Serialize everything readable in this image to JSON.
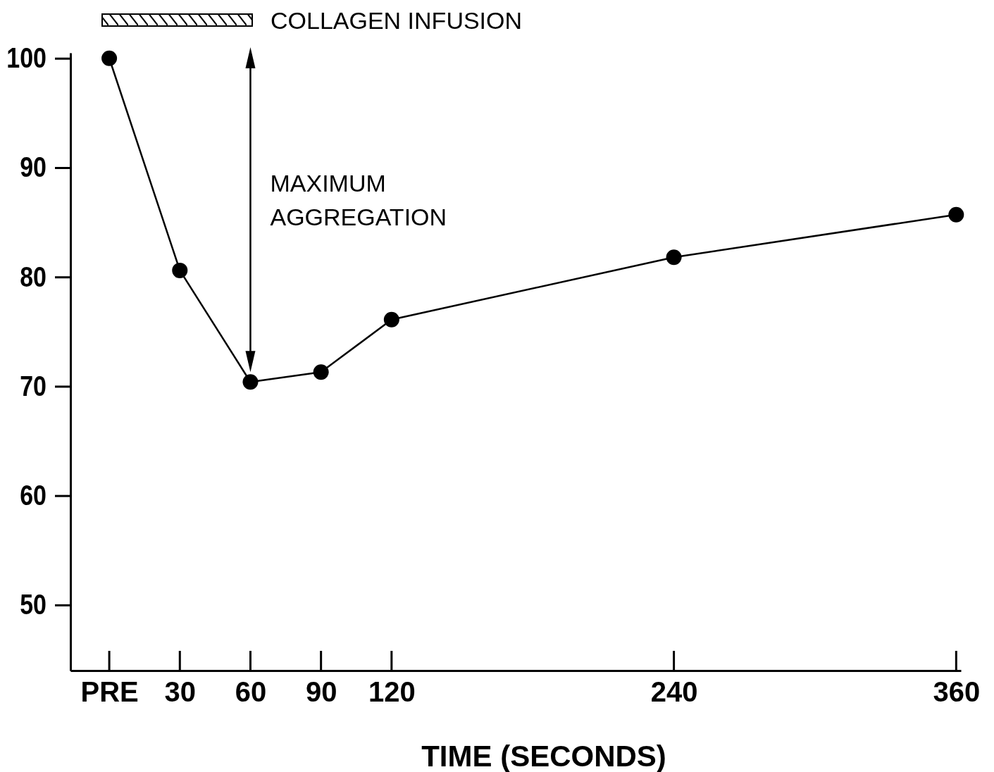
{
  "chart_data": {
    "type": "line",
    "xlabel": "TIME (SECONDS)",
    "x": [
      0,
      30,
      60,
      90,
      120,
      240,
      360
    ],
    "values": [
      100,
      80.6,
      70.4,
      71.3,
      76.1,
      81.8,
      85.7
    ],
    "color": "#000000",
    "marker": "circle",
    "line_style": "solid",
    "grid": false,
    "xlim": [
      -16.5,
      362
    ],
    "xticks": [
      {
        "value": 0,
        "label": "PRE"
      },
      30,
      60,
      90,
      120,
      240,
      360
    ],
    "ylim": [
      44,
      100.5
    ],
    "yticks": [
      50,
      60,
      70,
      80,
      90,
      100
    ],
    "annotations": [
      "COLLAGEN INFUSION",
      "MAXIMUM AGGREGATION"
    ]
  }
}
